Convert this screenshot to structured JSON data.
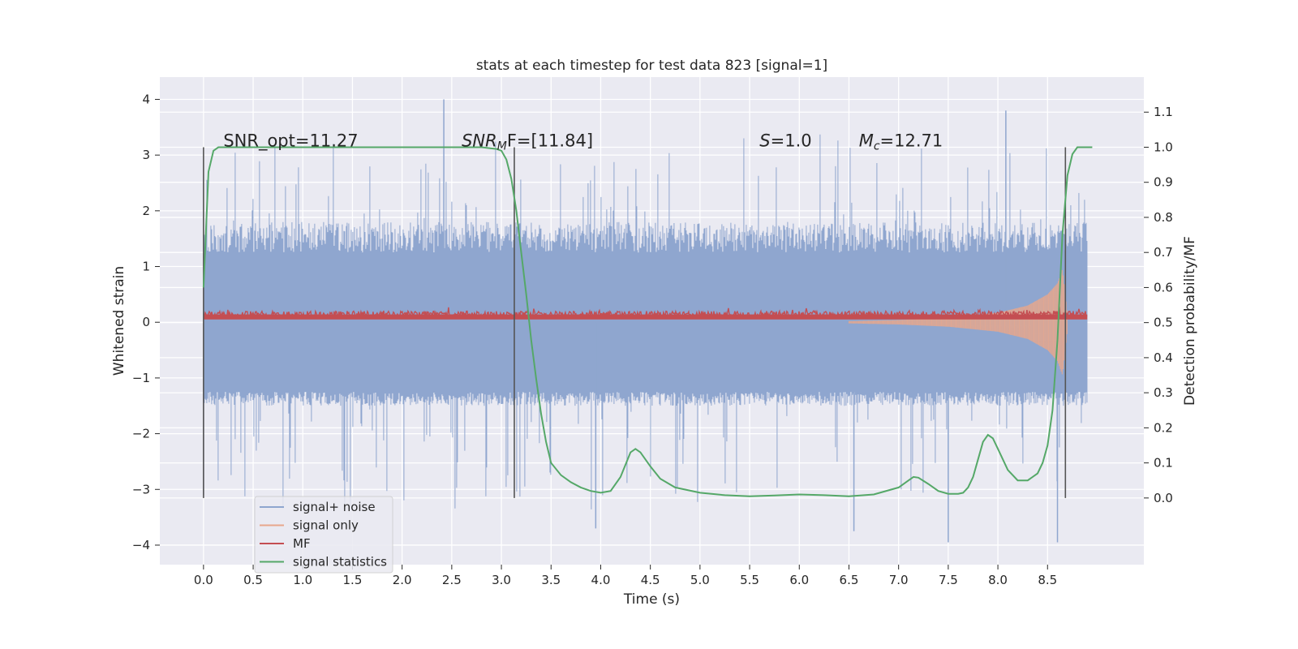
{
  "chart_data": {
    "type": "line",
    "title": "stats at each timestep for test data 823 [signal=1]",
    "xlabel": "Time (s)",
    "ylabel": "Whitened strain",
    "y2label": "Detection probability/MF",
    "xlim": [
      -0.44,
      9.47
    ],
    "ylim": [
      -4.35,
      4.4
    ],
    "y2lim": [
      -0.19,
      1.2
    ],
    "grid": true,
    "legend_position": "bottom-left",
    "x_ticks": [
      0.0,
      0.5,
      1.0,
      1.5,
      2.0,
      2.5,
      3.0,
      3.5,
      4.0,
      4.5,
      5.0,
      5.5,
      6.0,
      6.5,
      7.0,
      7.5,
      8.0,
      8.5
    ],
    "x_tick_labels": [
      "0.0",
      "0.5",
      "1.0",
      "1.5",
      "2.0",
      "2.5",
      "3.0",
      "3.5",
      "4.0",
      "4.5",
      "5.0",
      "5.5",
      "6.0",
      "6.5",
      "7.0",
      "7.5",
      "8.0",
      "8.5"
    ],
    "y_ticks": [
      4,
      3,
      2,
      1,
      0,
      -1,
      -2,
      -3,
      -4
    ],
    "y_tick_labels": [
      "4",
      "3",
      "2",
      "1",
      "0",
      "−1",
      "−2",
      "−3",
      "−4"
    ],
    "y2_ticks": [
      1.1,
      1.0,
      0.9,
      0.8,
      0.7,
      0.6,
      0.5,
      0.4,
      0.3,
      0.2,
      0.1,
      0.0
    ],
    "y2_tick_labels": [
      "1.1",
      "1.0",
      "0.9",
      "0.8",
      "0.7",
      "0.6",
      "0.5",
      "0.4",
      "0.3",
      "0.2",
      "0.1",
      "0.0"
    ],
    "noise_envelope": {
      "x_range": [
        0.0,
        8.9
      ],
      "upper_typical": 1.8,
      "lower_typical": -1.5,
      "upper_peak": 4.0,
      "lower_peak": -3.95
    },
    "signal_envelope": {
      "x": [
        6.5,
        7.0,
        7.5,
        8.0,
        8.3,
        8.5,
        8.6,
        8.65,
        8.7
      ],
      "amplitude": [
        0.02,
        0.04,
        0.08,
        0.17,
        0.3,
        0.5,
        0.7,
        0.95,
        0.15
      ]
    },
    "mf_range": [
      0.05,
      0.3
    ],
    "series": [
      {
        "name": "signal+ noise",
        "color": "#8fa6cf"
      },
      {
        "name": "signal only",
        "color": "#e8a78c"
      },
      {
        "name": "MF",
        "color": "#c44e52"
      },
      {
        "name": "signal statistics",
        "color": "#55a868",
        "axis": "right",
        "x": [
          0.0,
          0.05,
          0.1,
          0.15,
          0.2,
          0.3,
          0.5,
          1.0,
          1.5,
          2.0,
          2.5,
          2.8,
          2.95,
          3.0,
          3.05,
          3.1,
          3.15,
          3.2,
          3.25,
          3.3,
          3.35,
          3.4,
          3.45,
          3.5,
          3.6,
          3.7,
          3.8,
          3.9,
          4.0,
          4.1,
          4.2,
          4.3,
          4.35,
          4.4,
          4.5,
          4.6,
          4.75,
          5.0,
          5.25,
          5.5,
          5.75,
          6.0,
          6.25,
          6.5,
          6.75,
          7.0,
          7.1,
          7.15,
          7.2,
          7.3,
          7.4,
          7.5,
          7.6,
          7.65,
          7.7,
          7.75,
          7.8,
          7.85,
          7.9,
          7.95,
          8.0,
          8.05,
          8.1,
          8.2,
          8.3,
          8.4,
          8.45,
          8.5,
          8.55,
          8.6,
          8.65,
          8.7,
          8.75,
          8.8,
          8.85,
          8.9,
          8.95
        ],
        "y": [
          0.6,
          0.93,
          0.99,
          1.0,
          1.0,
          1.0,
          1.0,
          1.0,
          1.0,
          1.0,
          1.0,
          1.0,
          0.995,
          0.99,
          0.965,
          0.91,
          0.82,
          0.7,
          0.58,
          0.45,
          0.34,
          0.24,
          0.16,
          0.1,
          0.065,
          0.045,
          0.03,
          0.02,
          0.015,
          0.02,
          0.06,
          0.13,
          0.14,
          0.13,
          0.09,
          0.055,
          0.03,
          0.015,
          0.008,
          0.005,
          0.007,
          0.01,
          0.008,
          0.005,
          0.01,
          0.03,
          0.05,
          0.06,
          0.058,
          0.04,
          0.02,
          0.012,
          0.012,
          0.015,
          0.03,
          0.06,
          0.11,
          0.16,
          0.18,
          0.17,
          0.14,
          0.11,
          0.08,
          0.05,
          0.05,
          0.07,
          0.1,
          0.15,
          0.25,
          0.45,
          0.75,
          0.92,
          0.98,
          1.0,
          1.0,
          1.0,
          1.0
        ]
      }
    ],
    "vertical_lines": [
      0.0,
      3.13,
      8.68
    ],
    "annotations": [
      {
        "x": 0.2,
        "text": "SNR_opt=11.27"
      },
      {
        "x": 2.6,
        "text_main": "SNR",
        "text_sub": "M",
        "text_rest": "F=[11.84]"
      },
      {
        "x": 5.6,
        "text_main": "S",
        "text_sub": "",
        "text_rest": "=1.0"
      },
      {
        "x": 6.6,
        "text_main": "M",
        "text_sub": "c",
        "text_rest": "=12.71"
      }
    ]
  }
}
